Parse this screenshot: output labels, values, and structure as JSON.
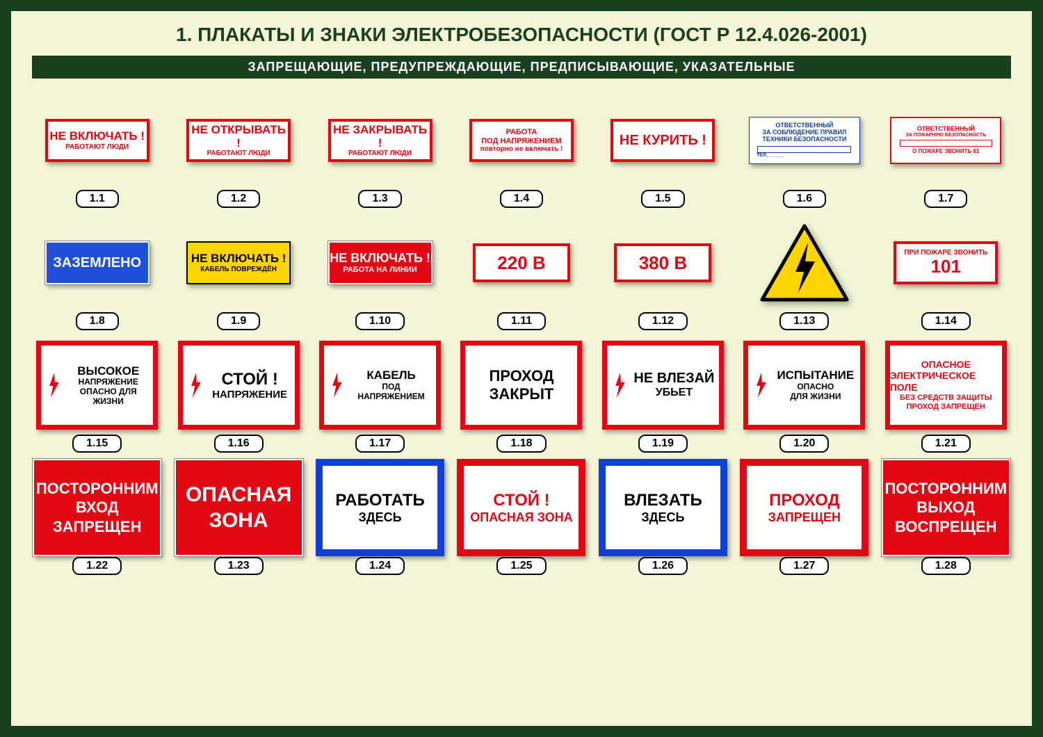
{
  "title": "1. ПЛАКАТЫ И ЗНАКИ ЭЛЕКТРОБЕЗОПАСНОСТИ (ГОСТ Р 12.4.026-2001)",
  "categories": "ЗАПРЕЩАЮЩИЕ,    ПРЕДУПРЕЖДАЮЩИЕ,    ПРЕДПИСЫВАЮЩИЕ,    УКАЗАТЕЛЬНЫЕ",
  "colors": {
    "page_bg": "#f3f5d6",
    "frame": "#1a4020",
    "red": "#e30613",
    "blue": "#2050d8",
    "blue_border": "#1040d8",
    "yellow": "#ffd400",
    "black": "#000000",
    "white": "#ffffff"
  },
  "signs": [
    {
      "id": "1.1",
      "type": "r1",
      "line1": "НЕ ВКЛЮЧАТЬ !",
      "line2": "РАБОТАЮТ ЛЮДИ"
    },
    {
      "id": "1.2",
      "type": "r1",
      "line1": "НЕ ОТКРЫВАТЬ !",
      "line2": "РАБОТАЮТ ЛЮДИ"
    },
    {
      "id": "1.3",
      "type": "r1",
      "line1": "НЕ ЗАКРЫВАТЬ !",
      "line2": "РАБОТАЮТ ЛЮДИ"
    },
    {
      "id": "1.4",
      "type": "r1",
      "line1": "РАБОТА",
      "line2": "ПОД НАПРЯЖЕНИЕМ",
      "line3": "повторно не включать !"
    },
    {
      "id": "1.5",
      "type": "r1",
      "line1": "НЕ КУРИТЬ !"
    },
    {
      "id": "1.6",
      "type": "r1b",
      "line1": "ОТВЕТСТВЕННЫЙ",
      "line2": "ЗА СОБЛЮДЕНИЕ ПРАВИЛ",
      "line3": "ТЕХНИКИ БЕЗОПАСНОСТИ"
    },
    {
      "id": "1.7",
      "type": "r1c",
      "line1": "ОТВЕТСТВЕННЫЙ",
      "line2": "ЗА ПОЖАРНУЮ БЕЗОПАСНОСТЬ",
      "line3": "О ПОЖАРЕ ЗВОНИТЬ    01"
    },
    {
      "id": "1.8",
      "type": "blue",
      "line1": "ЗАЗЕМЛЕНО"
    },
    {
      "id": "1.9",
      "type": "yellow",
      "line1": "НЕ ВКЛЮЧАТЬ !",
      "line2": "КАБЕЛЬ ПОВРЕЖДЁН"
    },
    {
      "id": "1.10",
      "type": "redfill",
      "line1": "НЕ ВКЛЮЧАТЬ !",
      "line2": "РАБОТА НА ЛИНИИ"
    },
    {
      "id": "1.11",
      "type": "volt",
      "line1": "220 В"
    },
    {
      "id": "1.12",
      "type": "volt",
      "line1": "380 В"
    },
    {
      "id": "1.13",
      "type": "triangle",
      "desc": "lightning-warning"
    },
    {
      "id": "1.14",
      "type": "fire",
      "line1": "ПРИ ПОЖАРЕ ЗВОНИТЬ",
      "line2": "101"
    },
    {
      "id": "1.15",
      "type": "r3",
      "line1": "ВЫСОКОЕ",
      "line2": "НАПРЯЖЕНИЕ",
      "line3": "ОПАСНО ДЛЯ",
      "line4": "ЖИЗНИ",
      "arrow": true
    },
    {
      "id": "1.16",
      "type": "r3",
      "line1": "СТОЙ !",
      "line2": "НАПРЯЖЕНИЕ",
      "arrow": true
    },
    {
      "id": "1.17",
      "type": "r3",
      "line1": "КАБЕЛЬ",
      "line2": "ПОД",
      "line3": "НАПРЯЖЕНИЕМ",
      "arrow": true
    },
    {
      "id": "1.18",
      "type": "r3c",
      "line1": "ПРОХОД",
      "line2": "ЗАКРЫТ"
    },
    {
      "id": "1.19",
      "type": "r3",
      "line1": "НЕ ВЛЕЗАЙ",
      "line2": "УБЬЕТ",
      "arrow": true
    },
    {
      "id": "1.20",
      "type": "r3",
      "line1": "ИСПЫТАНИЕ",
      "line2": "ОПАСНО",
      "line3": "ДЛЯ ЖИЗНИ",
      "arrow": true
    },
    {
      "id": "1.21",
      "type": "r3red",
      "line1": "ОПАСНОЕ",
      "line2": "ЭЛЕКТРИЧЕСКОЕ ПОЛЕ",
      "line3": "БЕЗ СРЕДСТВ ЗАЩИТЫ",
      "line4": "ПРОХОД ЗАПРЕЩЕН"
    },
    {
      "id": "1.22",
      "type": "r4red",
      "line1": "ПОСТОРОННИМ",
      "line2": "ВХОД",
      "line3": "ЗАПРЕЩЕН"
    },
    {
      "id": "1.23",
      "type": "r4red",
      "line1": "ОПАСНАЯ",
      "line2": "ЗОНА"
    },
    {
      "id": "1.24",
      "type": "r4blue",
      "line1": "РАБОТАТЬ",
      "line2": "ЗДЕСЬ"
    },
    {
      "id": "1.25",
      "type": "r4redf",
      "line1": "СТОЙ !",
      "line2": "ОПАСНАЯ ЗОНА"
    },
    {
      "id": "1.26",
      "type": "r4blue",
      "line1": "ВЛЕЗАТЬ",
      "line2": "ЗДЕСЬ"
    },
    {
      "id": "1.27",
      "type": "r4redf",
      "line1": "ПРОХОД",
      "line2": "ЗАПРЕЩЕН"
    },
    {
      "id": "1.28",
      "type": "r4red",
      "line1": "ПОСТОРОННИМ",
      "line2": "ВЫХОД",
      "line3": "ВОСПРЕЩЕН"
    }
  ]
}
